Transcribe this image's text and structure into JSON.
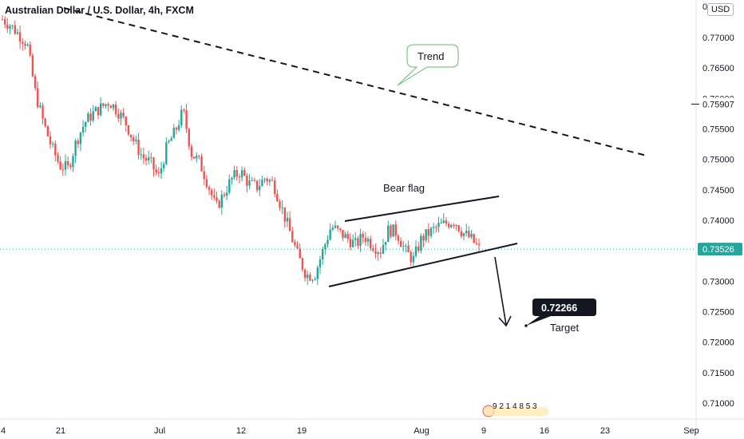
{
  "header": {
    "title": "Australian Dollar / U.S. Dollar, 4h, FXCM",
    "currency": "USD"
  },
  "chart_data": {
    "type": "candlestick",
    "symbol": "AUDUSD",
    "ylim": [
      0.705,
      0.7795
    ],
    "y_ticks": [
      "0.77000",
      "0.76500",
      "0.76000",
      "0.75500",
      "0.75000",
      "0.74500",
      "0.74000",
      "0.73000",
      "0.72500",
      "0.72000",
      "0.71500",
      "0.71000"
    ],
    "y_tick_values": [
      0.77,
      0.765,
      0.76,
      0.755,
      0.75,
      0.745,
      0.74,
      0.73,
      0.725,
      0.72,
      0.715,
      0.71
    ],
    "x_ticks": [
      "4",
      "21",
      "Jul",
      "12",
      "19",
      "Aug",
      "9",
      "16",
      "23",
      "Sep"
    ],
    "price_marks": [
      {
        "label": "0.75907",
        "value": 0.75907,
        "style": "line"
      },
      {
        "label": "0.73526",
        "value": 0.73526,
        "style": "current"
      }
    ],
    "close_path": [
      0.773,
      0.772,
      0.7705,
      0.769,
      0.761,
      0.756,
      0.752,
      0.749,
      0.7485,
      0.753,
      0.756,
      0.7575,
      0.7585,
      0.7595,
      0.758,
      0.756,
      0.753,
      0.7505,
      0.7495,
      0.747,
      0.752,
      0.7545,
      0.758,
      0.751,
      0.7495,
      0.746,
      0.742,
      0.7445,
      0.747,
      0.748,
      0.746,
      0.7455,
      0.747,
      0.746,
      0.742,
      0.738,
      0.734,
      0.731,
      0.731,
      0.735,
      0.739,
      0.738,
      0.737,
      0.736,
      0.7375,
      0.736,
      0.735,
      0.7385,
      0.738,
      0.735,
      0.7335,
      0.737,
      0.738,
      0.739,
      0.7395,
      0.74,
      0.738,
      0.737,
      0.7353
    ],
    "annotations": {
      "trend": "Trend",
      "bear_flag": "Bear flag",
      "target_label": "Target",
      "target_value": "0.72266",
      "event_icons": "9 2 1 4   8   5   3"
    }
  }
}
